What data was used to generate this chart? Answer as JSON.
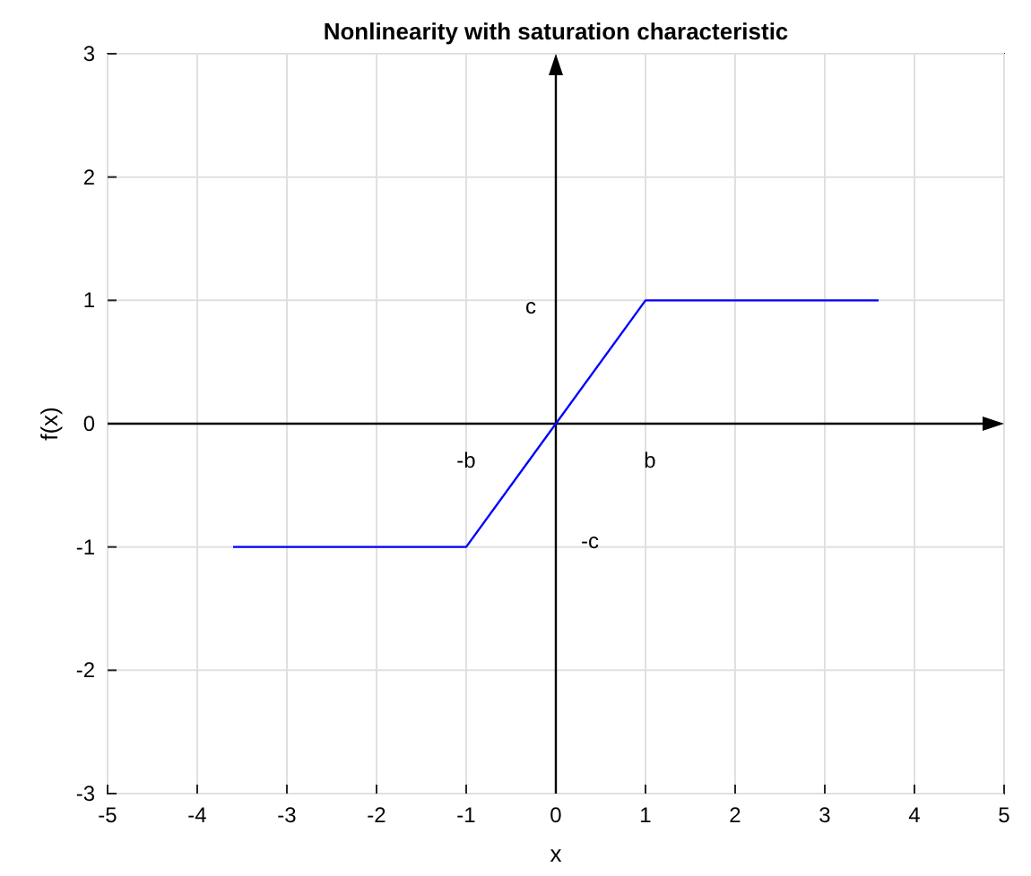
{
  "chart_data": {
    "type": "line",
    "title": "Nonlinearity with saturation characteristic",
    "xlabel": "x",
    "ylabel": "f(x)",
    "x": [
      -3.6,
      -1,
      1,
      3.6
    ],
    "series": [
      {
        "color": "#0000ff",
        "values": [
          -1,
          -1,
          1,
          1
        ]
      }
    ],
    "xlim": [
      -5,
      5
    ],
    "xticks": [
      -5,
      -4,
      -3,
      -2,
      -1,
      0,
      1,
      2,
      3,
      4,
      5
    ],
    "ylim": [
      -3,
      3
    ],
    "yticks": [
      -3,
      -2,
      -1,
      0,
      1,
      2,
      3
    ],
    "grid": true,
    "annotations": [
      "c",
      "-b",
      "b",
      "-c"
    ]
  }
}
